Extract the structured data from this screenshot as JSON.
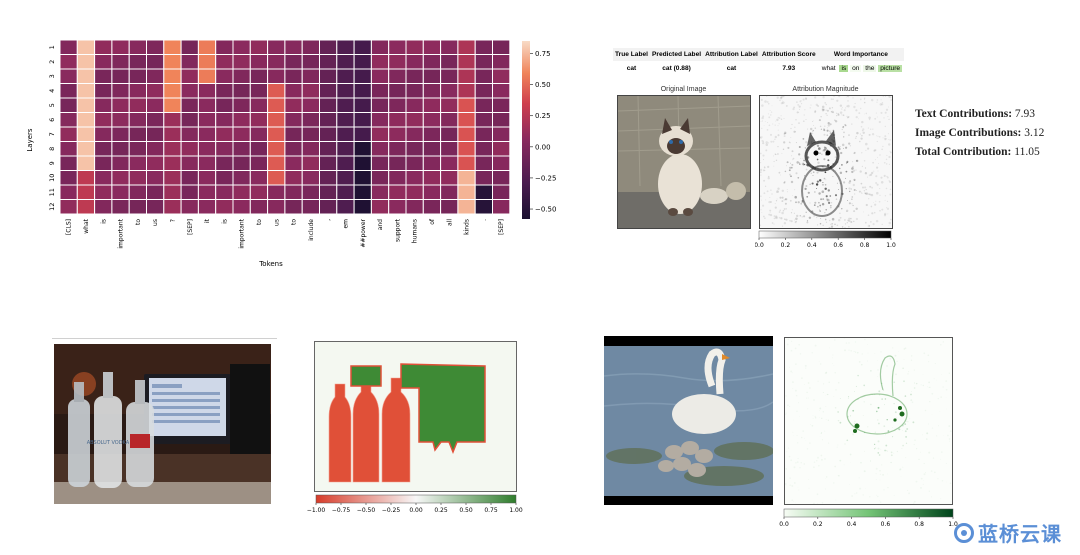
{
  "heatmap": {
    "ylabel": "Layers",
    "xlabel": "Tokens",
    "layers": [
      "1",
      "2",
      "3",
      "4",
      "5",
      "6",
      "7",
      "8",
      "9",
      "10",
      "11",
      "12"
    ],
    "tokens": [
      "[CLS]",
      "what",
      "is",
      "important",
      "to",
      "us",
      "?",
      "[SEP]",
      "it",
      "is",
      "important",
      "to",
      "us",
      "to",
      "include",
      ",",
      "em",
      "##power",
      "and",
      "support",
      "humans",
      "of",
      "all",
      "kinds",
      ".",
      "[SEP]"
    ],
    "colorbar_ticks": [
      "0.75",
      "0.50",
      "0.25",
      "0.00",
      "−0.25",
      "−0.50"
    ]
  },
  "attribution_table": {
    "headers": [
      "True Label",
      "Predicted Label",
      "Attribution Label",
      "Attribution Score",
      "Word Importance"
    ],
    "true_label": "cat",
    "predicted_label": "cat (0.88)",
    "attribution_label": "cat",
    "attribution_score": "7.93",
    "words": [
      {
        "text": "what",
        "color": "#ffffff"
      },
      {
        "text": "is",
        "color": "#a9d98f"
      },
      {
        "text": "on",
        "color": "#f4fbf0"
      },
      {
        "text": "the",
        "color": "#eef8e8"
      },
      {
        "text": "picture",
        "color": "#b9e0a4"
      }
    ]
  },
  "cat_panels": {
    "left_title": "Original Image",
    "right_title": "Attribution Magnitude",
    "colorbar_ticks": [
      "0.0",
      "0.2",
      "0.4",
      "0.6",
      "0.8",
      "1.0"
    ]
  },
  "contributions": {
    "text_label": "Text Contributions:",
    "text_value": "7.93",
    "image_label": "Image Contributions:",
    "image_value": "3.12",
    "total_label": "Total Contribution:",
    "total_value": "11.05"
  },
  "bottle_panel": {
    "colorbar_ticks": [
      "−1.00",
      "−0.75",
      "−0.50",
      "−0.25",
      "0.00",
      "0.25",
      "0.50",
      "0.75",
      "1.00"
    ],
    "label_overlay": "ABSOLUT VODKA",
    "colors": {
      "negative": "#e05038",
      "positive": "#3e8a35"
    }
  },
  "swan_panel": {
    "colorbar_ticks": [
      "0.0",
      "0.2",
      "0.4",
      "0.6",
      "0.8",
      "1.0"
    ]
  },
  "watermark": {
    "text": "蓝桥云课"
  }
}
